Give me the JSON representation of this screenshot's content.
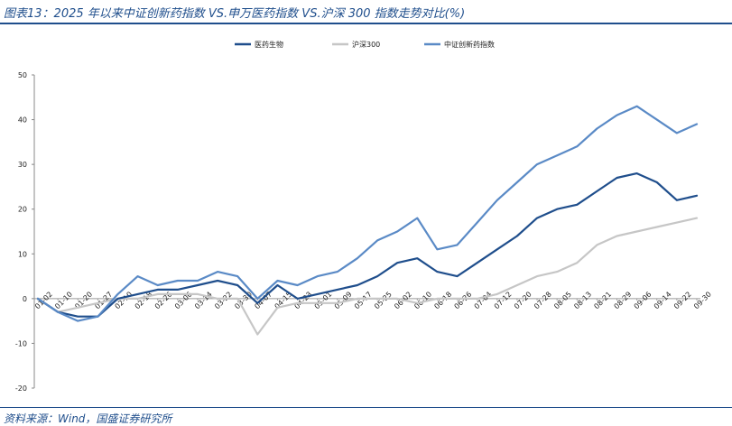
{
  "title": "图表13：2025 年以来中证创新药指数 VS.申万医药指数 VS.沪深 300 指数走势对比(%)",
  "source": "资料来源：Wind，国盛证券研究所",
  "colors": {
    "s1": "#1f4e8c",
    "s2": "#c6c6c6",
    "s3": "#5a8ac6",
    "zero": "#9a9a9a",
    "axis": "#888888"
  },
  "chart_data": {
    "type": "line",
    "title": "",
    "xlabel": "",
    "ylabel": "",
    "ylim": [
      -20,
      50
    ],
    "yticks": [
      -20,
      -10,
      0,
      10,
      20,
      30,
      40,
      50
    ],
    "grid": false,
    "legend_position": "top",
    "x": [
      "01-02",
      "01-10",
      "01-20",
      "01-27",
      "02-10",
      "02-18",
      "02-26",
      "03-06",
      "03-14",
      "03-22",
      "03-30",
      "04-07",
      "04-15",
      "04-23",
      "05-01",
      "05-09",
      "05-17",
      "05-25",
      "06-02",
      "06-10",
      "06-18",
      "06-26",
      "07-04",
      "07-12",
      "07-20",
      "07-28",
      "08-05",
      "08-13",
      "08-21",
      "08-29",
      "09-06",
      "09-14",
      "09-22",
      "09-30"
    ],
    "series": [
      {
        "name": "医药生物",
        "color_key": "s1",
        "values": [
          0,
          -3,
          -4,
          -4,
          0,
          1,
          2,
          2,
          3,
          4,
          3,
          -1,
          3,
          0,
          1,
          2,
          3,
          5,
          8,
          9,
          6,
          5,
          8,
          11,
          14,
          18,
          20,
          21,
          24,
          27,
          28,
          26,
          22,
          23
        ]
      },
      {
        "name": "沪深300",
        "color_key": "s2",
        "values": [
          0,
          -3,
          -2,
          -1,
          0,
          0,
          1,
          1,
          1,
          0,
          0,
          -8,
          -2,
          -1,
          -1,
          -1,
          0,
          0,
          0,
          -1,
          0,
          0,
          0,
          1,
          3,
          5,
          6,
          8,
          12,
          14,
          15,
          16,
          17,
          18
        ]
      },
      {
        "name": "中证创新药指数",
        "color_key": "s3",
        "values": [
          0,
          -3,
          -5,
          -4,
          1,
          5,
          3,
          4,
          4,
          6,
          5,
          0,
          4,
          3,
          5,
          6,
          9,
          13,
          15,
          18,
          11,
          12,
          17,
          22,
          26,
          30,
          32,
          34,
          38,
          41,
          43,
          40,
          37,
          39
        ]
      }
    ]
  }
}
